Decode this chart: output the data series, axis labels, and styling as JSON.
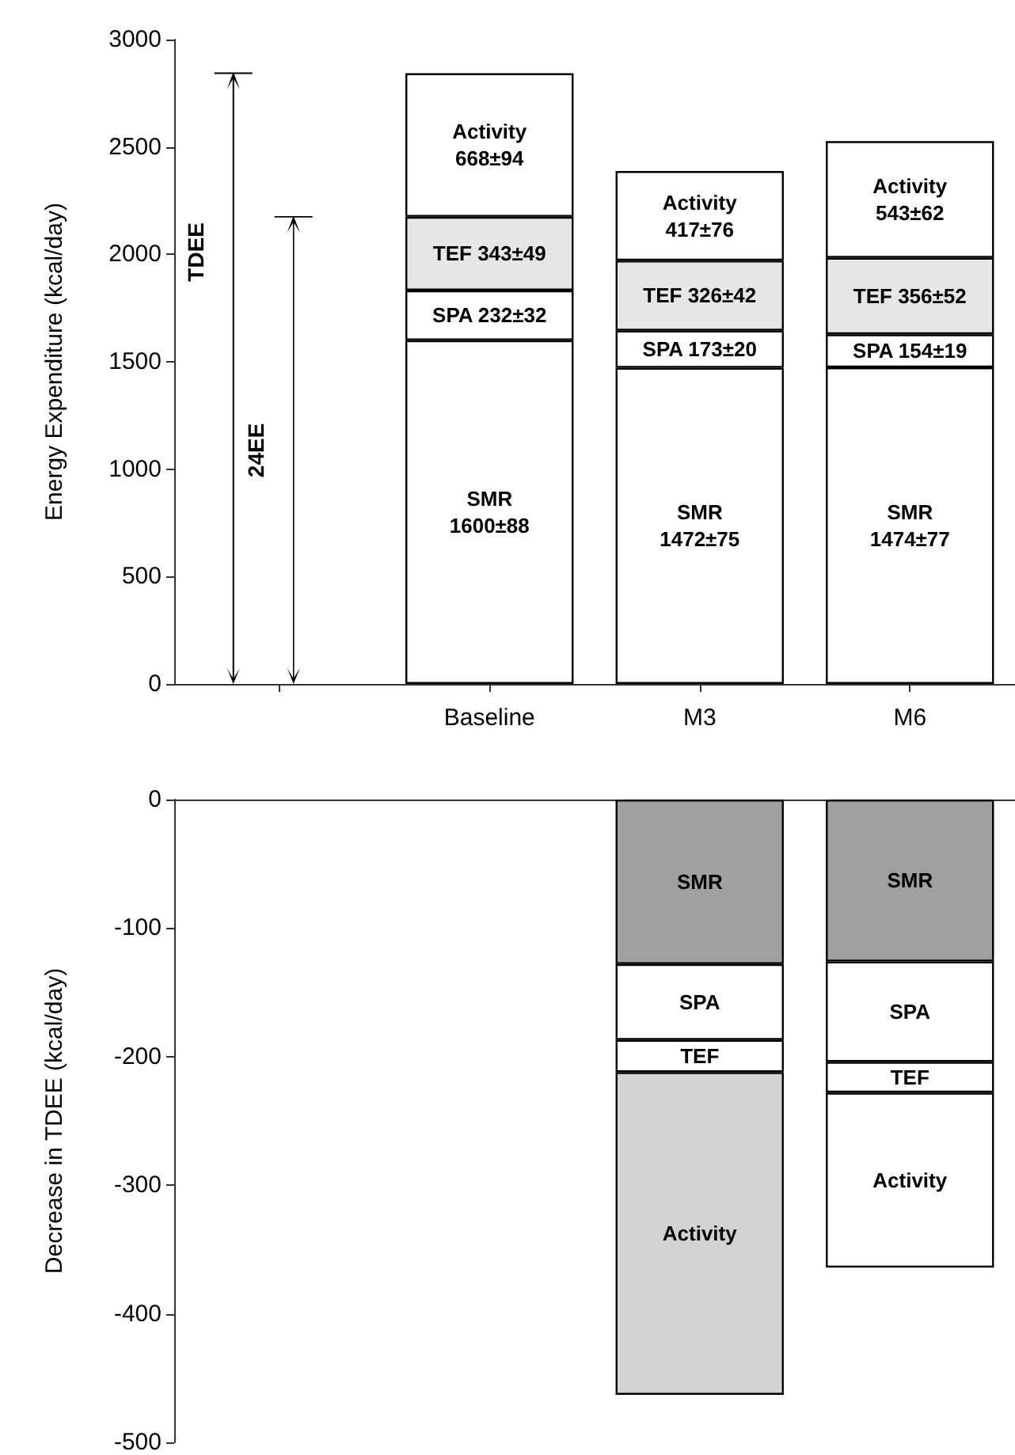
{
  "chart_data": [
    {
      "type": "bar",
      "stacked": true,
      "ylabel": "Energy Expenditure (kcal/day)",
      "categories": [
        null,
        "Baseline",
        "M3",
        "M6"
      ],
      "ylim": [
        0,
        3000
      ],
      "yticks": [
        0,
        500,
        1000,
        1500,
        2000,
        2500,
        3000
      ],
      "grid": false,
      "legend": false,
      "annotations": [
        "TDEE",
        "24EE"
      ],
      "series": [
        {
          "color": "#ffffff",
          "values": [
            null,
            1600,
            1472,
            1474
          ],
          "value_labels": [
            null,
            "SMR\n1600±88",
            "SMR\n1472±75",
            "SMR\n1474±77"
          ]
        },
        {
          "color": "#ffffff",
          "values": [
            null,
            232,
            173,
            154
          ],
          "value_labels": [
            null,
            "SPA 232±32",
            "SPA 173±20",
            "SPA 154±19"
          ]
        },
        {
          "color": "#e6e6e6",
          "values": [
            null,
            343,
            326,
            356
          ],
          "value_labels": [
            null,
            "TEF 343±49",
            "TEF 326±42",
            "TEF 356±52"
          ]
        },
        {
          "color": "#ffffff",
          "values": [
            null,
            668,
            417,
            543
          ],
          "value_labels": [
            null,
            "Activity\n668±94",
            "Activity\n417±76",
            "Activity\n543±62"
          ]
        }
      ]
    },
    {
      "type": "bar",
      "stacked": true,
      "ylabel": "Decrease in TDEE (kcal/day)",
      "categories": [
        null,
        null,
        null,
        null
      ],
      "tick_labels": "y",
      "ylim": [
        -500,
        0
      ],
      "yticks": [
        -500,
        -400,
        -300,
        -200,
        -100,
        0
      ],
      "grid": false,
      "legend": false,
      "series": [
        {
          "name": "SMR",
          "colors": [
            "#a0a0a0",
            "#a0a0a0",
            "#a0a0a0",
            "#a0a0a0"
          ],
          "values": [
            null,
            null,
            -128,
            -126
          ]
        },
        {
          "name": "SPA",
          "colors": [
            "#ffffff",
            "#ffffff",
            "#ffffff",
            "#ffffff"
          ],
          "values": [
            null,
            null,
            -59,
            -78
          ]
        },
        {
          "name": "TEF",
          "colors": [
            "#ffffff",
            "#ffffff",
            "#ffffff",
            "#ffffff"
          ],
          "values": [
            null,
            null,
            -25,
            -24
          ]
        },
        {
          "name": "Activity",
          "colors": [
            "#d3d3d3",
            "#d3d3d3",
            "#d3d3d3",
            "#ffffff"
          ],
          "values": [
            null,
            null,
            -251,
            -136
          ]
        }
      ]
    }
  ]
}
